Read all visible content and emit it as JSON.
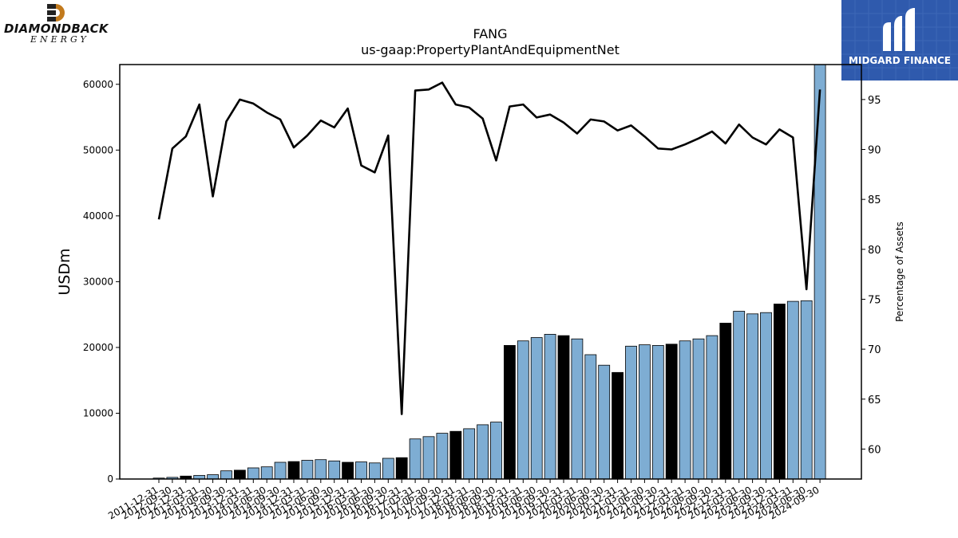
{
  "branding": {
    "left_logo_text": "DIAMONDBACK",
    "left_logo_subtext": "ENERGY",
    "right_logo_text": "MIDGARD FINANCE"
  },
  "chart_data": {
    "type": "bar",
    "title": "FANG",
    "subtitle": "us-gaap:PropertyPlantAndEquipmentNet",
    "ylabel": "USDm",
    "y2label": "Percentage of Assets",
    "ylim": [
      0,
      63000
    ],
    "y2lim": [
      57,
      98.5
    ],
    "yticks": [
      0,
      10000,
      20000,
      30000,
      40000,
      50000,
      60000
    ],
    "y2ticks": [
      60,
      65,
      70,
      75,
      80,
      85,
      90,
      95
    ],
    "bar_color": "#7eadd3",
    "highlight_color": "#000000",
    "line_color": "#000000",
    "categories": [
      "2011-12-31",
      "2012-09-30",
      "2012-12-31",
      "2013-03-31",
      "2013-06-30",
      "2013-09-30",
      "2013-12-31",
      "2014-03-31",
      "2014-06-30",
      "2014-09-30",
      "2014-12-31",
      "2015-03-31",
      "2015-06-30",
      "2015-09-30",
      "2015-12-31",
      "2016-03-31",
      "2016-06-30",
      "2016-09-30",
      "2016-12-31",
      "2017-03-31",
      "2017-06-30",
      "2017-09-30",
      "2017-12-31",
      "2018-03-31",
      "2018-06-30",
      "2018-09-30",
      "2018-12-31",
      "2019-03-31",
      "2019-06-30",
      "2019-09-30",
      "2019-12-31",
      "2020-03-31",
      "2020-06-30",
      "2020-09-30",
      "2020-12-31",
      "2021-03-31",
      "2021-06-30",
      "2021-09-30",
      "2021-12-31",
      "2022-03-31",
      "2022-06-30",
      "2022-09-30",
      "2022-12-31",
      "2023-03-31",
      "2023-06-30",
      "2023-09-30",
      "2023-12-31",
      "2024-03-31",
      "2024-06-30",
      "2024-09-30"
    ],
    "xtick_labels": [
      "2011-12-31",
      "2012-09-30",
      "2012-12-31",
      "2013-03-31",
      "2013-06-30",
      "2013-09-30",
      "2013-12-31",
      "2014-03-31",
      "2014-06-30",
      "2014-09-30",
      "2014-12-31",
      "2015-03-31",
      "2015-06-30",
      "2015-09-30",
      "2015-12-31",
      "2016-03-31",
      "2016-06-30",
      "2016-09-30",
      "2016-12-31",
      "2017-03-31",
      "2017-06-30",
      "2017-09-30",
      "2017-12-31",
      "2018-03-31",
      "2018-06-30",
      "2018-09-30",
      "2018-12-31",
      "2019-03-31",
      "2019-06-30",
      "2019-09-30",
      "2019-12-31",
      "2020-03-31",
      "2020-06-30",
      "2020-09-30",
      "2020-12-31",
      "2021-03-31",
      "2021-06-30",
      "2021-09-30",
      "2021-12-31",
      "2022-03-31",
      "2022-06-30",
      "2022-09-30",
      "2022-12-31",
      "2023-03-31",
      "2023-06-30",
      "2023-09-30",
      "2023-12-31",
      "2024-03-31",
      "2024-06-30",
      "2024-09-30"
    ],
    "values": [
      150,
      250,
      450,
      550,
      650,
      1250,
      1350,
      1700,
      1850,
      2550,
      2650,
      2850,
      2950,
      2750,
      2550,
      2600,
      2450,
      3150,
      3250,
      6100,
      6450,
      6950,
      7250,
      7650,
      8250,
      8650,
      20300,
      21000,
      21500,
      22000,
      21800,
      21300,
      18900,
      17300,
      16200,
      20200,
      20400,
      20300,
      20500,
      21000,
      21300,
      21800,
      23700,
      25500,
      25100,
      25300,
      26600,
      27000,
      27100,
      63500
    ],
    "highlight": [
      false,
      false,
      true,
      false,
      false,
      false,
      true,
      false,
      false,
      false,
      true,
      false,
      false,
      false,
      true,
      false,
      false,
      false,
      true,
      false,
      false,
      false,
      true,
      false,
      false,
      false,
      true,
      false,
      false,
      false,
      true,
      false,
      false,
      false,
      true,
      false,
      false,
      false,
      true,
      false,
      false,
      false,
      true,
      false,
      false,
      false,
      true,
      false,
      false,
      false
    ],
    "pct_of_assets": [
      83.0,
      90.1,
      91.3,
      94.5,
      85.3,
      92.8,
      95.0,
      94.6,
      93.7,
      93.0,
      90.2,
      91.4,
      92.9,
      92.2,
      94.1,
      88.4,
      87.7,
      91.4,
      63.5,
      95.9,
      96.0,
      96.7,
      94.5,
      94.2,
      93.1,
      88.9,
      94.3,
      94.5,
      93.2,
      93.5,
      92.7,
      91.6,
      93.0,
      92.8,
      91.9,
      92.4,
      91.3,
      90.1,
      90.0,
      90.5,
      91.1,
      91.8,
      90.6,
      92.5,
      91.2,
      90.5,
      92.0,
      91.2,
      76.0,
      96.0
    ],
    "grid": false
  }
}
